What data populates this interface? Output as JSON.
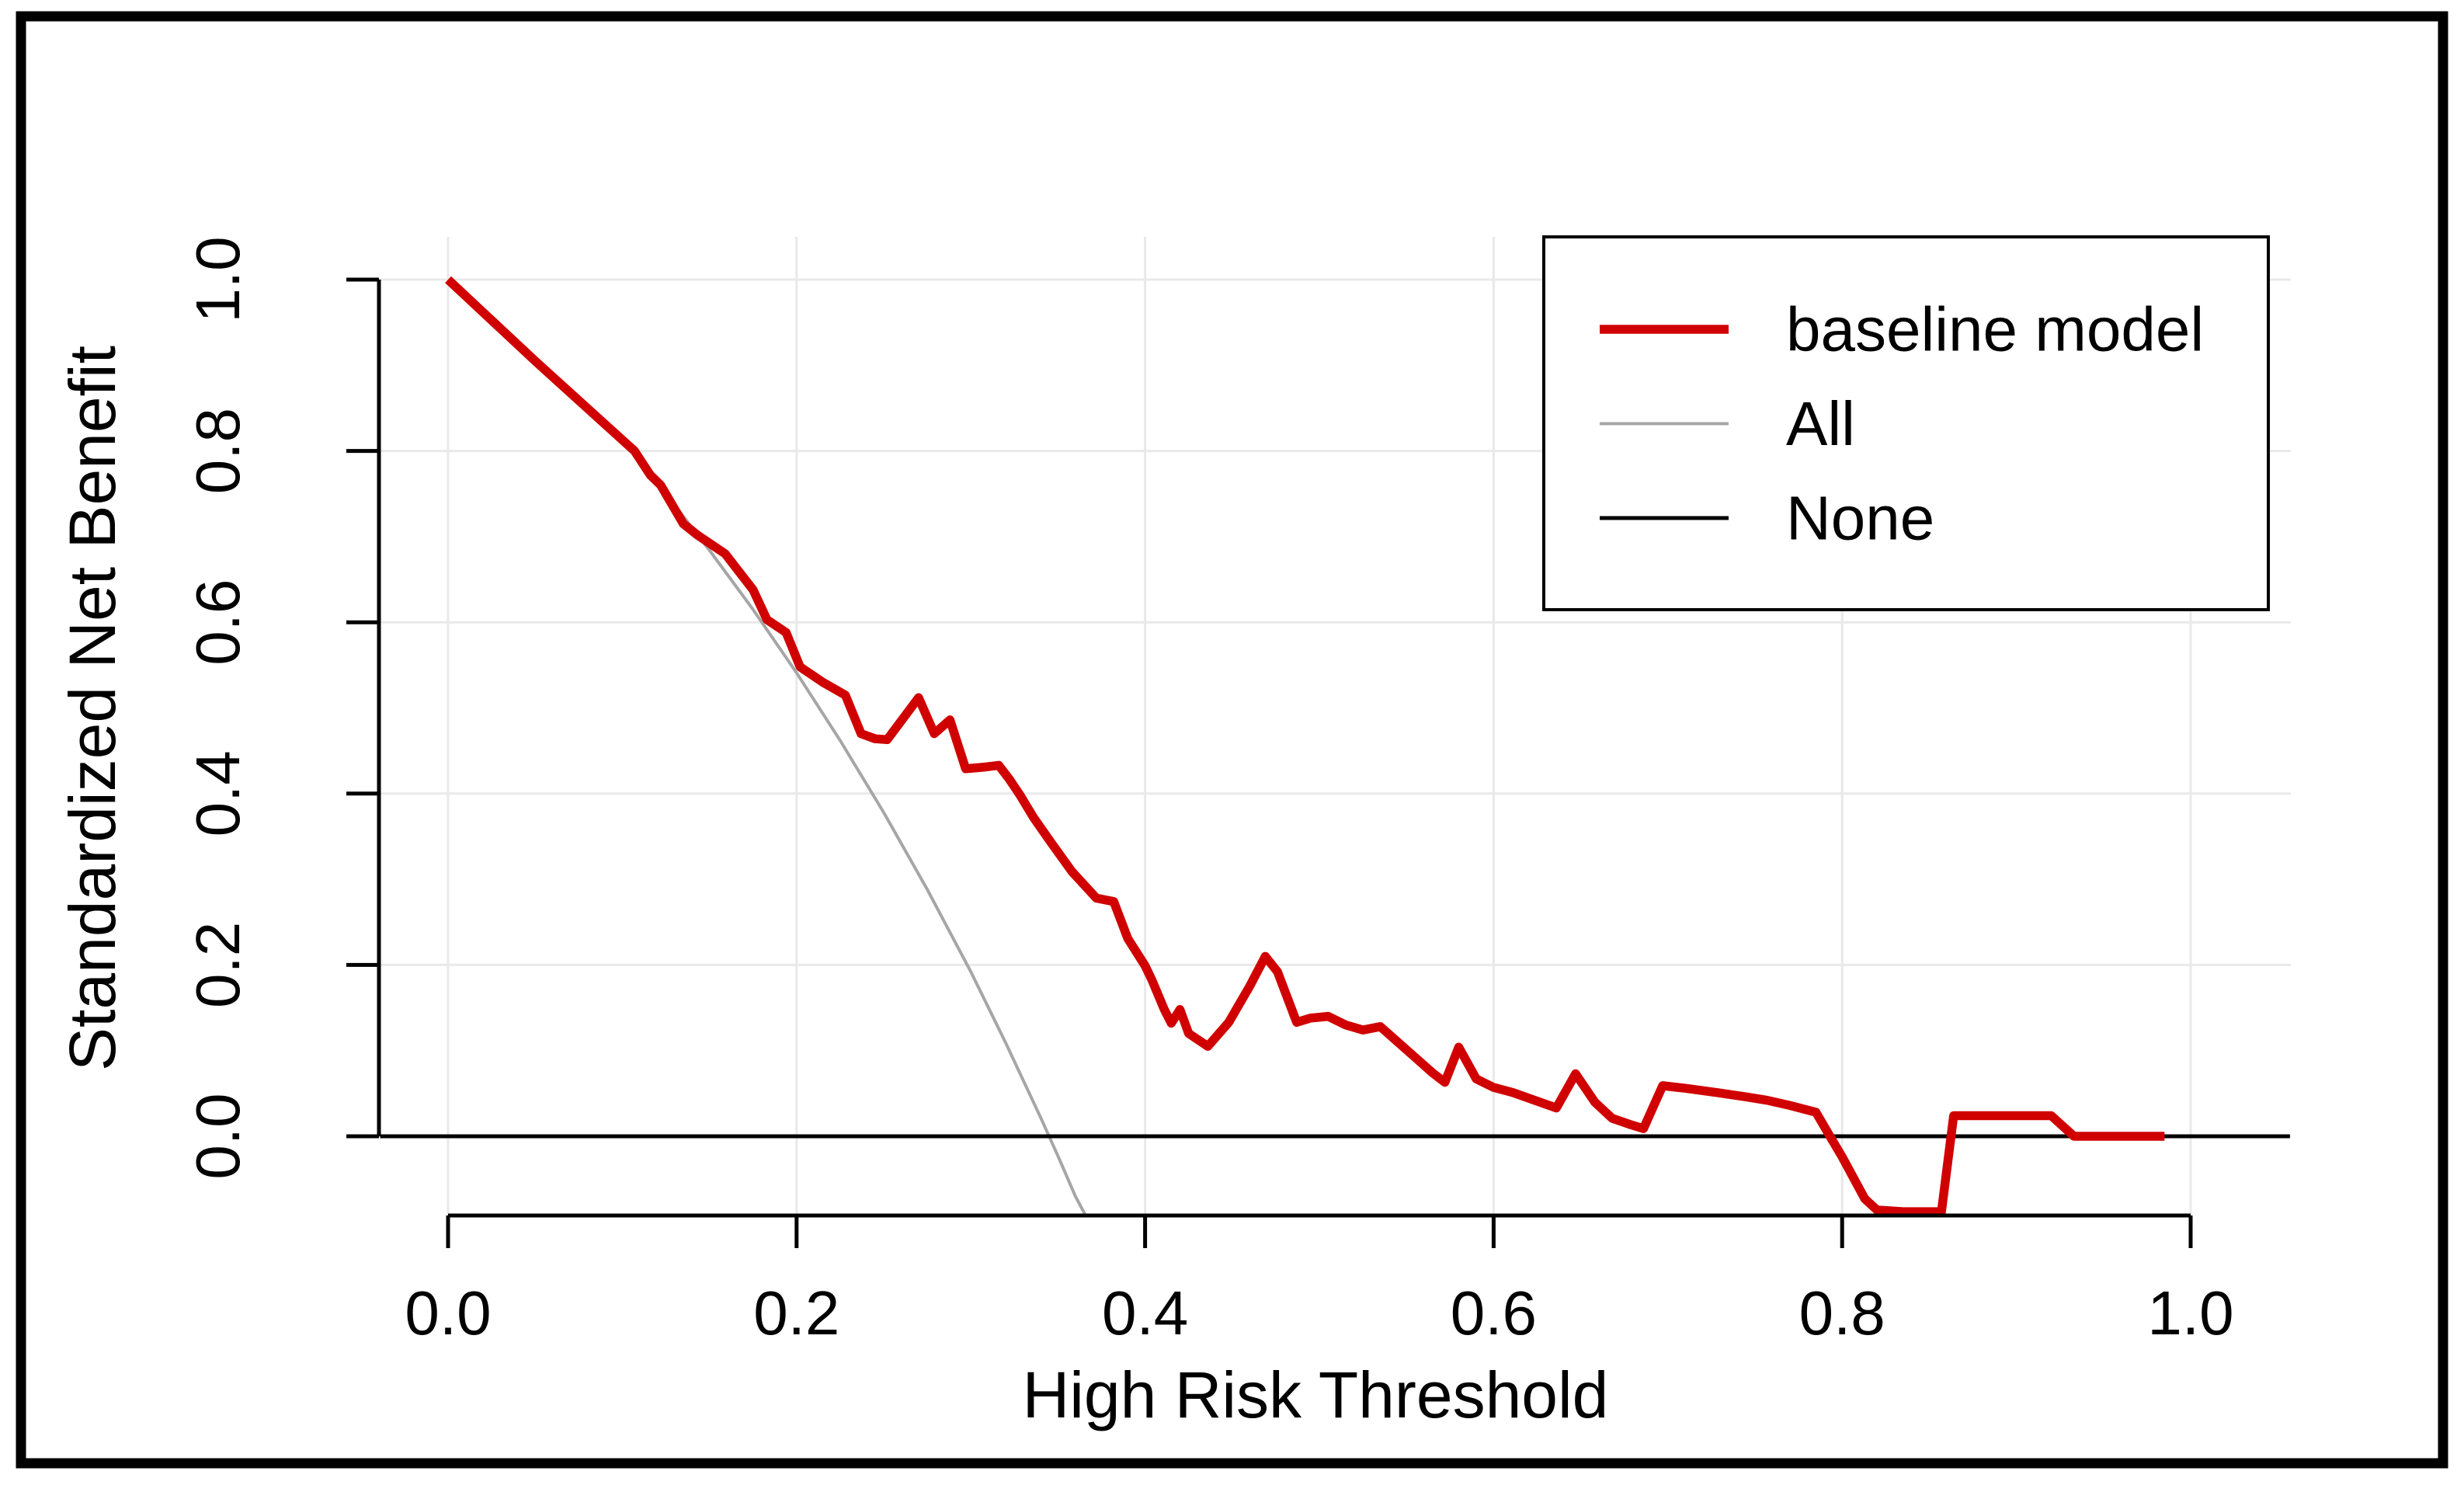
{
  "chart_data": {
    "type": "line",
    "title": "",
    "xlabel": "High Risk Threshold",
    "ylabel": "Standardized Net Benefit",
    "xlim": [
      -0.04,
      1.058
    ],
    "ylim": [
      -0.093,
      1.05
    ],
    "grid": true,
    "grid_color": "#e9e9e9",
    "background": "#ffffff",
    "x_ticks": {
      "values": [
        0.0,
        0.2,
        0.4,
        0.6,
        0.8,
        1.0
      ],
      "labels": [
        "0.0",
        "0.2",
        "0.4",
        "0.6",
        "0.8",
        "1.0"
      ]
    },
    "y_ticks": {
      "values": [
        0.0,
        0.2,
        0.4,
        0.6,
        0.8,
        1.0
      ],
      "labels": [
        "0.0",
        "0.2",
        "0.4",
        "0.6",
        "0.8",
        "1.0"
      ]
    },
    "legend": {
      "position": "top-right",
      "border": true,
      "items": [
        {
          "label": "baseline model",
          "color": "#d10000",
          "line_width": 11.5
        },
        {
          "label": "All",
          "color": "#a6a6a6",
          "line_width": 4
        },
        {
          "label": "None",
          "color": "#000000",
          "line_width": 5
        }
      ]
    },
    "series": [
      {
        "name": "All",
        "color": "#a6a6a6",
        "line_width": 4,
        "points": [
          [
            0.0,
            1.0
          ],
          [
            0.05,
            0.905
          ],
          [
            0.095,
            0.822
          ],
          [
            0.105,
            0.8
          ],
          [
            0.13,
            0.737
          ],
          [
            0.15,
            0.684
          ],
          [
            0.175,
            0.615
          ],
          [
            0.2,
            0.541
          ],
          [
            0.225,
            0.462
          ],
          [
            0.25,
            0.378
          ],
          [
            0.275,
            0.288
          ],
          [
            0.3,
            0.192
          ],
          [
            0.32,
            0.109
          ],
          [
            0.34,
            0.022
          ],
          [
            0.35,
            -0.023
          ],
          [
            0.36,
            -0.07
          ],
          [
            0.366,
            -0.093
          ]
        ]
      },
      {
        "name": "None",
        "color": "#000000",
        "line_width": 5,
        "points": [
          [
            -0.039,
            0.0
          ],
          [
            1.057,
            0.0
          ]
        ]
      },
      {
        "name": "baseline model",
        "color": "#d10000",
        "line_width": 11.5,
        "points": [
          [
            0.0,
            1.0
          ],
          [
            0.05,
            0.905
          ],
          [
            0.095,
            0.822
          ],
          [
            0.107,
            0.8
          ],
          [
            0.116,
            0.772
          ],
          [
            0.122,
            0.76
          ],
          [
            0.135,
            0.715
          ],
          [
            0.143,
            0.702
          ],
          [
            0.159,
            0.68
          ],
          [
            0.175,
            0.638
          ],
          [
            0.183,
            0.603
          ],
          [
            0.194,
            0.588
          ],
          [
            0.202,
            0.548
          ],
          [
            0.215,
            0.53
          ],
          [
            0.228,
            0.515
          ],
          [
            0.237,
            0.47
          ],
          [
            0.245,
            0.464
          ],
          [
            0.252,
            0.463
          ],
          [
            0.27,
            0.512
          ],
          [
            0.279,
            0.47
          ],
          [
            0.288,
            0.486
          ],
          [
            0.297,
            0.429
          ],
          [
            0.308,
            0.431
          ],
          [
            0.316,
            0.433
          ],
          [
            0.322,
            0.417
          ],
          [
            0.328,
            0.399
          ],
          [
            0.336,
            0.372
          ],
          [
            0.346,
            0.343
          ],
          [
            0.358,
            0.309
          ],
          [
            0.372,
            0.278
          ],
          [
            0.382,
            0.274
          ],
          [
            0.39,
            0.231
          ],
          [
            0.4,
            0.199
          ],
          [
            0.404,
            0.182
          ],
          [
            0.411,
            0.148
          ],
          [
            0.415,
            0.132
          ],
          [
            0.42,
            0.148
          ],
          [
            0.425,
            0.12
          ],
          [
            0.436,
            0.105
          ],
          [
            0.448,
            0.133
          ],
          [
            0.46,
            0.175
          ],
          [
            0.469,
            0.21
          ],
          [
            0.476,
            0.192
          ],
          [
            0.487,
            0.133
          ],
          [
            0.495,
            0.138
          ],
          [
            0.505,
            0.14
          ],
          [
            0.515,
            0.13
          ],
          [
            0.525,
            0.124
          ],
          [
            0.535,
            0.128
          ],
          [
            0.545,
            0.11
          ],
          [
            0.555,
            0.092
          ],
          [
            0.565,
            0.074
          ],
          [
            0.572,
            0.063
          ],
          [
            0.58,
            0.104
          ],
          [
            0.59,
            0.067
          ],
          [
            0.6,
            0.057
          ],
          [
            0.611,
            0.051
          ],
          [
            0.625,
            0.041
          ],
          [
            0.636,
            0.033
          ],
          [
            0.647,
            0.073
          ],
          [
            0.658,
            0.04
          ],
          [
            0.668,
            0.021
          ],
          [
            0.678,
            0.014
          ],
          [
            0.686,
            0.009
          ],
          [
            0.697,
            0.059
          ],
          [
            0.71,
            0.056
          ],
          [
            0.728,
            0.051
          ],
          [
            0.745,
            0.046
          ],
          [
            0.757,
            0.042
          ],
          [
            0.77,
            0.036
          ],
          [
            0.785,
            0.028
          ],
          [
            0.793,
            0.0
          ],
          [
            0.8,
            -0.024
          ],
          [
            0.813,
            -0.073
          ],
          [
            0.82,
            -0.086
          ],
          [
            0.835,
            -0.088
          ],
          [
            0.857,
            -0.088
          ],
          [
            0.864,
            0.024
          ],
          [
            0.92,
            0.024
          ],
          [
            0.933,
            0.0
          ],
          [
            0.985,
            0.0
          ]
        ]
      }
    ]
  },
  "colors": {
    "grid": "#e9e9e9",
    "axis": "#000000",
    "frame": "#000000",
    "text": "#000000",
    "background": "#ffffff"
  }
}
